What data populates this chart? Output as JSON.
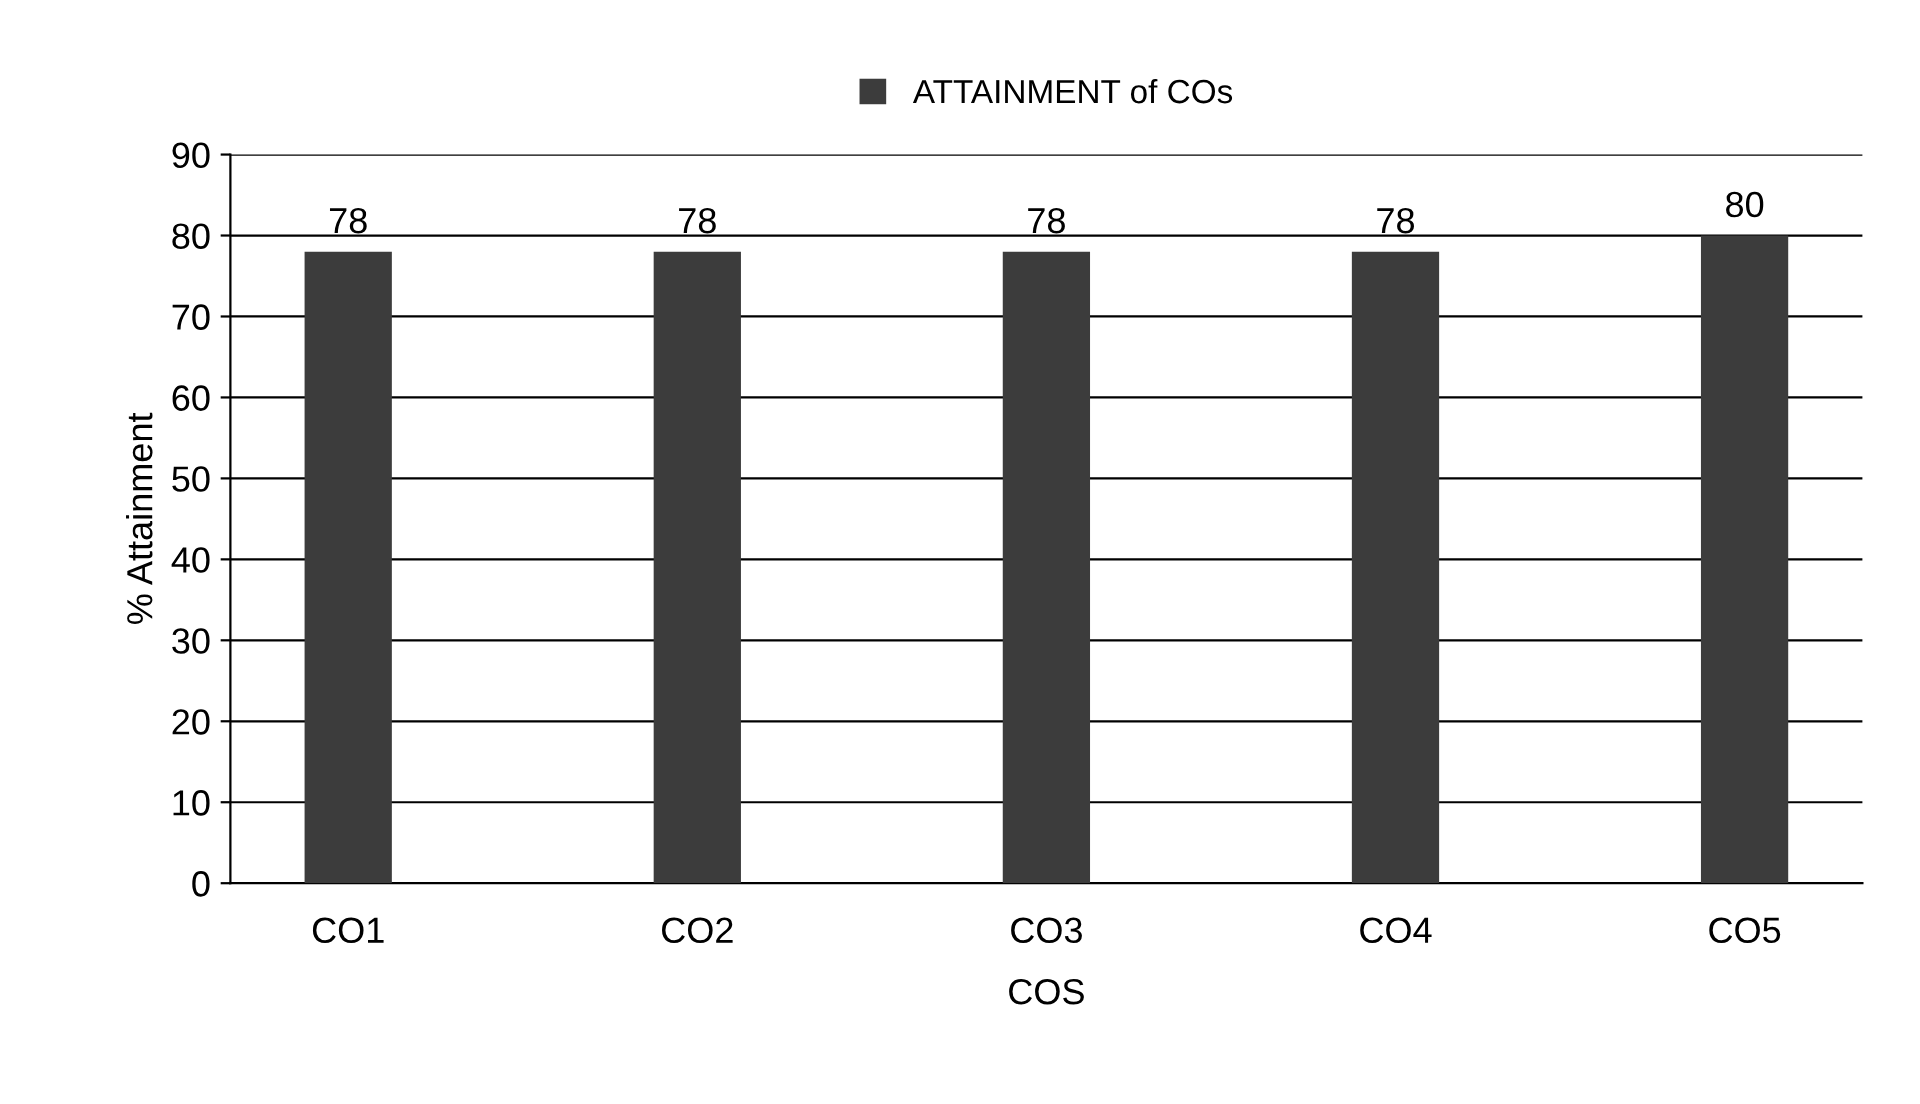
{
  "chart_data": {
    "type": "bar",
    "xlabel": "COS",
    "ylabel": "% Attainment",
    "categories": [
      "CO1",
      "CO2",
      "CO3",
      "CO4",
      "CO5"
    ],
    "series": [
      {
        "name": "ATTAINMENT of COs",
        "color": "#3c3c3c",
        "values": [
          78,
          78,
          78,
          78,
          80
        ]
      }
    ],
    "ylim": [
      0,
      90
    ],
    "yticks": [
      0,
      10,
      20,
      30,
      40,
      50,
      60,
      70,
      80,
      90
    ],
    "grid": "y",
    "legend": "top",
    "data_labels": true
  }
}
